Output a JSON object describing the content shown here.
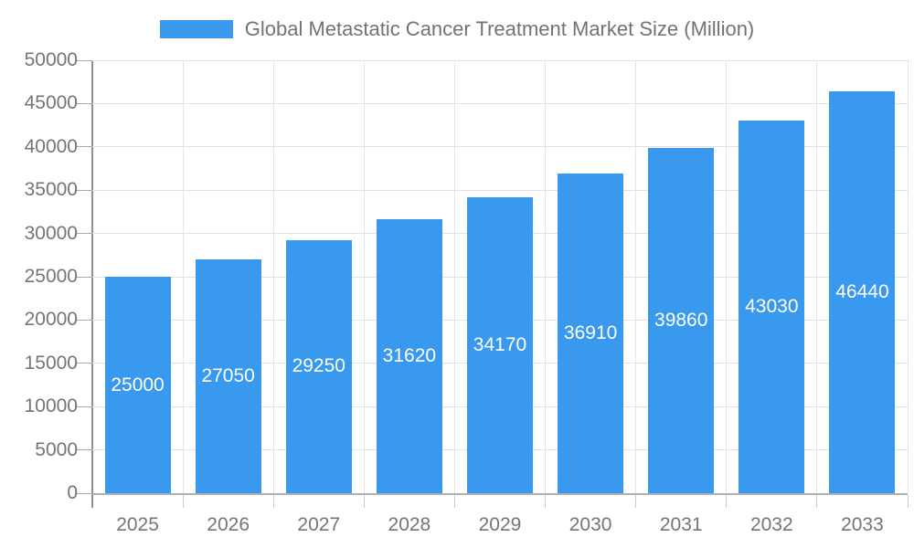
{
  "chart_data": {
    "type": "bar",
    "title": "",
    "categories": [
      "2025",
      "2026",
      "2027",
      "2028",
      "2029",
      "2030",
      "2031",
      "2032",
      "2033"
    ],
    "series": [
      {
        "name": "Global Metastatic Cancer Treatment Market Size (Million)",
        "values": [
          25000,
          27050,
          29250,
          31620,
          34170,
          36910,
          39860,
          43030,
          46440
        ]
      }
    ],
    "data_labels": [
      "25000",
      "27050",
      "29250",
      "31620",
      "34170",
      "36910",
      "39860",
      "43030",
      "46440"
    ],
    "xlabel": "",
    "ylabel": "",
    "ylim": [
      0,
      50000
    ],
    "yticks": [
      0,
      5000,
      10000,
      15000,
      20000,
      25000,
      30000,
      35000,
      40000,
      45000,
      50000
    ],
    "grid": true,
    "legend_position": "top-center",
    "colors": {
      "bar": "#3999ee",
      "grid_h": "#e2e2e2",
      "grid_v": "#e6e6e6",
      "axis_y": "#8f8f8f",
      "axis_x": "#b0b0b0",
      "tick": "#bbbbbb",
      "text": "#757575",
      "bar_label": "#ffffff"
    }
  }
}
